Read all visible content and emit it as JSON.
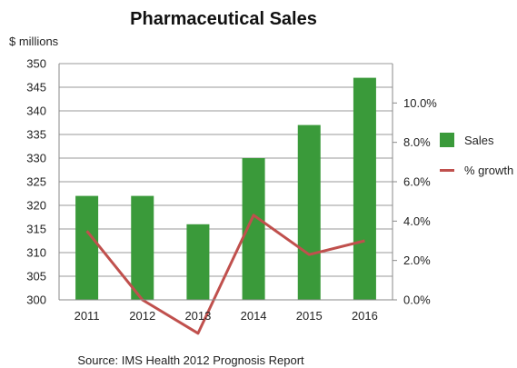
{
  "chart_data": {
    "type": "bar",
    "title": "Pharmaceutical Sales",
    "ylabel": "$ millions",
    "source": "Source:  IMS Health 2012 Prognosis Report",
    "categories": [
      "2011",
      "2012",
      "2013",
      "2014",
      "2015",
      "2016"
    ],
    "series": [
      {
        "name": "Sales",
        "type": "bar",
        "axis": "left",
        "color": "#3a9a3a",
        "values": [
          322,
          322,
          316,
          330,
          337,
          347
        ]
      },
      {
        "name": "% growth",
        "type": "line",
        "axis": "right",
        "color": "#c0504d",
        "values": [
          3.5,
          0.0,
          -1.7,
          4.3,
          2.3,
          3.0
        ]
      }
    ],
    "ylim_left": [
      300,
      350
    ],
    "yticks_left": [
      "300",
      "305",
      "310",
      "315",
      "320",
      "325",
      "330",
      "335",
      "340",
      "345",
      "350"
    ],
    "ylim_right": [
      0,
      12
    ],
    "yticks_right": [
      "0.0%",
      "2.0%",
      "4.0%",
      "6.0%",
      "8.0%",
      "10.0%"
    ],
    "grid": true,
    "legend_position": "right"
  }
}
